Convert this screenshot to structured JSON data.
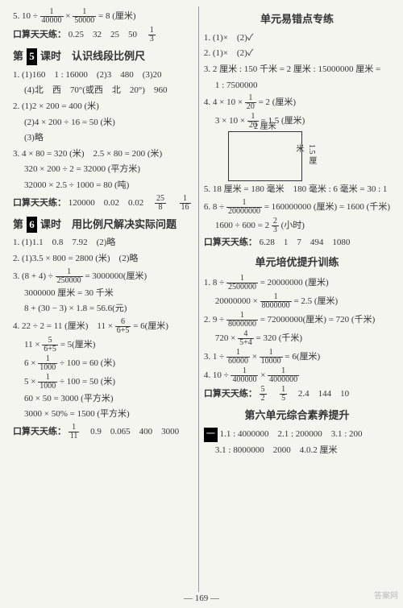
{
  "left": {
    "top_line": {
      "prefix": "5. 10 ÷ ",
      "f1n": "1",
      "f1d": "40000",
      "mid": " × ",
      "f2n": "1",
      "f2d": "50000",
      "suffix": " = 8 (厘米)"
    },
    "daily1": {
      "label": "口算天天练：",
      "vals": "0.25　32　25　50　",
      "lastn": "1",
      "lastd": "3"
    },
    "sec5_title_a": "第",
    "sec5_num": "5",
    "sec5_title_b": "课时　认识线段比例尺",
    "l1": "1. (1)160　1 : 16000　(2)3　480　(3)20",
    "l2": "(4)北　西　70°(或西　北　20°)　960",
    "l3": "2. (1)2 × 200 = 400 (米)",
    "l4": "(2)4 × 200 ÷ 16 = 50 (米)",
    "l5": "(3)略",
    "l6": "3. 4 × 80 = 320 (米)　2.5 × 80 = 200 (米)",
    "l7": "320 × 200 ÷ 2 = 32000 (平方米)",
    "l8": "32000 × 2.5 ÷ 1000 = 80 (吨)",
    "daily2": {
      "label": "口算天天练：",
      "vals": "120000　0.02　0.02　",
      "f1n": "25",
      "f1d": "8",
      "sp": "　",
      "f2n": "1",
      "f2d": "16"
    },
    "sec6_title_a": "第",
    "sec6_num": "6",
    "sec6_title_b": "课时　用比例尺解决实际问题",
    "m1": "1. (1)1.1　0.8　7.92　(2)略",
    "m2": "2. (1)3.5 × 800 = 2800 (米)　(2)略",
    "m3": {
      "prefix": "3. (8 + 4) ÷ ",
      "fn": "1",
      "fd": "250000",
      "suffix": " = 3000000(厘米)"
    },
    "m4": "3000000 厘米 = 30 千米",
    "m5": "8 + (30 − 3) × 1.8 = 56.6(元)",
    "m6": {
      "prefix": "4. 22 ÷ 2 = 11 (厘米)　11 × ",
      "fn": "6",
      "fd": "6+5",
      "suffix": " = 6(厘米)"
    },
    "m7": {
      "prefix": "11 × ",
      "fn": "5",
      "fd": "6+5",
      "suffix": " = 5(厘米)"
    },
    "m8": {
      "prefix": "6 × ",
      "fn": "1",
      "fd": "1000",
      "suffix": " ÷ 100 = 60 (米)"
    },
    "m9": {
      "prefix": "5 × ",
      "fn": "1",
      "fd": "1000",
      "suffix": " ÷ 100 = 50 (米)"
    },
    "m10": "60 × 50 = 3000 (平方米)",
    "m11": "3000 × 50% = 1500 (平方米)",
    "daily3": {
      "label": "口算天天练：",
      "fn": "1",
      "fd": "11",
      "vals": "　0.9　0.065　400　3000"
    }
  },
  "right": {
    "title1": "单元易错点专练",
    "r1": "1. (1)×　(2)✓",
    "r2": "2. (1)×　(2)✓",
    "r3a": "3. 2 厘米 : 150 千米 = 2 厘米 : 15000000 厘米 =",
    "r3b": "1 : 7500000",
    "r4": {
      "prefix": "4. 4 × 10 × ",
      "fn": "1",
      "fd": "20",
      "suffix": " = 2 (厘米)"
    },
    "r5": {
      "prefix": "3 × 10 × ",
      "fn": "1",
      "fd": "20",
      "suffix": " = 1.5 (厘米)"
    },
    "rect_top": "2 厘米",
    "rect_right": "1.5 厘米",
    "r6": "5. 18 厘米 = 180 毫米　180 毫米 : 6 毫米 = 30 : 1",
    "r7": {
      "prefix": "6. 8 ÷ ",
      "fn": "1",
      "fd": "20000000",
      "suffix": " = 160000000 (厘米) = 1600 (千米)"
    },
    "r8": {
      "prefix": "1600 ÷ 600 = 2",
      "fn": "2",
      "fd": "3",
      "suffix": " (小时)"
    },
    "daily4": {
      "label": "口算天天练：",
      "vals": "6.28　1　7　494　1080"
    },
    "title2": "单元培优提升训练",
    "p1": {
      "prefix": "1. 8 ÷ ",
      "fn": "1",
      "fd": "2500000",
      "suffix": " = 20000000 (厘米)"
    },
    "p2": {
      "prefix": "20000000 × ",
      "fn": "1",
      "fd": "8000000",
      "suffix": " = 2.5 (厘米)"
    },
    "p3": {
      "prefix": "2. 9 ÷ ",
      "fn": "1",
      "fd": "8000000",
      "suffix": " = 72000000(厘米) = 720 (千米)"
    },
    "p4": {
      "prefix": "720 × ",
      "fn": "4",
      "fd": "5+4",
      "suffix": " = 320 (千米)"
    },
    "p5": {
      "prefix": "3. 1 ÷ ",
      "f1n": "1",
      "f1d": "60000",
      "mid": " × ",
      "f2n": "1",
      "f2d": "10000",
      "suffix": " = 6(厘米)"
    },
    "p6": {
      "prefix": "4. 10 ÷ ",
      "f1n": "1",
      "f1d": "400000",
      "mid": " × ",
      "f2n": "1",
      "f2d": "4000000",
      "suffix": ""
    },
    "daily5": {
      "label": "口算天天练：",
      "f1n": "5",
      "f1d": "2",
      "sp": "　",
      "f2n": "1",
      "f2d": "5",
      "vals": "　2.4　144　10"
    },
    "title3": "第六单元综合素养提升",
    "u_label": "一",
    "u1": "1.1 : 4000000　2.1 : 200000　3.1 : 200",
    "u2": "3.1 : 8000000　2000　4.0.2 厘米"
  },
  "pagenum": "169",
  "watermark": "答案网"
}
